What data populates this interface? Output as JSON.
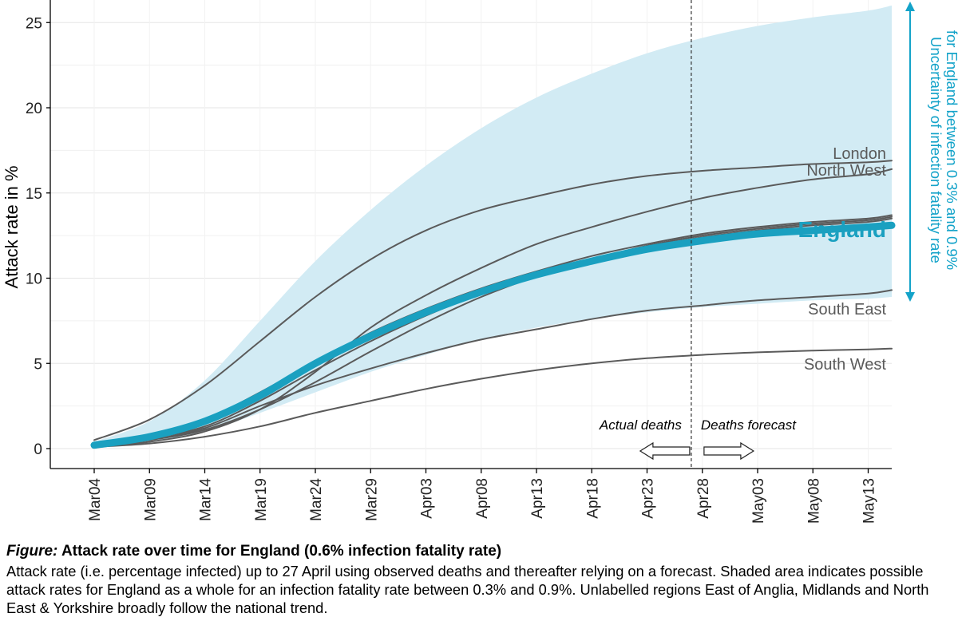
{
  "chart_data": {
    "type": "line",
    "ylabel": "Attack rate in %",
    "xlabel": "",
    "ylim": [
      0,
      26
    ],
    "yticks": [
      0,
      5,
      10,
      15,
      20,
      25
    ],
    "x_start": "Mar04",
    "x_end": "May18",
    "xticks": [
      "Mar04",
      "Mar09",
      "Mar14",
      "Mar19",
      "Mar24",
      "Mar29",
      "Apr03",
      "Apr08",
      "Apr13",
      "Apr18",
      "Apr23",
      "Apr28",
      "May03",
      "May08",
      "May13"
    ],
    "grid": "horizontal",
    "divider": {
      "x": "Apr27",
      "left_label": "Actual deaths",
      "right_label": "Deaths forecast"
    },
    "band": {
      "label": "Uncertainty of infection fatality rate for England between 0.3% and 0.9%",
      "x": [
        "Mar04",
        "Mar09",
        "Mar14",
        "Mar19",
        "Mar24",
        "Mar29",
        "Apr03",
        "Apr08",
        "Apr13",
        "Apr18",
        "Apr23",
        "Apr28",
        "May03",
        "May08",
        "May13",
        "May18"
      ],
      "upper": [
        0.4,
        1.6,
        4.0,
        7.5,
        11.0,
        14.0,
        16.6,
        18.8,
        20.6,
        22.0,
        23.2,
        24.1,
        24.8,
        25.3,
        25.7,
        26.0
      ],
      "lower": [
        0.1,
        0.4,
        1.0,
        2.1,
        3.3,
        4.5,
        5.5,
        6.4,
        7.1,
        7.6,
        8.0,
        8.3,
        8.5,
        8.7,
        8.8,
        8.9
      ]
    },
    "series": [
      {
        "name": "London",
        "x": [
          "Mar04",
          "Mar09",
          "Mar14",
          "Mar19",
          "Mar24",
          "Mar29",
          "Apr03",
          "Apr08",
          "Apr13",
          "Apr18",
          "Apr23",
          "Apr28",
          "May03",
          "May08",
          "May13",
          "May18"
        ],
        "values": [
          0.5,
          1.7,
          3.7,
          6.3,
          8.9,
          11.1,
          12.8,
          14.0,
          14.8,
          15.5,
          16.0,
          16.3,
          16.5,
          16.7,
          16.8,
          16.9
        ]
      },
      {
        "name": "North West",
        "x": [
          "Mar04",
          "Mar09",
          "Mar14",
          "Mar19",
          "Mar24",
          "Mar29",
          "Apr03",
          "Apr08",
          "Apr13",
          "Apr18",
          "Apr23",
          "Apr28",
          "May03",
          "May08",
          "May13",
          "May18"
        ],
        "values": [
          0.1,
          0.4,
          1.0,
          2.3,
          4.5,
          7.1,
          9.0,
          10.6,
          12.0,
          13.0,
          13.9,
          14.7,
          15.3,
          15.8,
          16.1,
          16.4
        ]
      },
      {
        "name": "England",
        "x": [
          "Mar04",
          "Mar09",
          "Mar14",
          "Mar19",
          "Mar24",
          "Mar29",
          "Apr03",
          "Apr08",
          "Apr13",
          "Apr18",
          "Apr23",
          "Apr28",
          "May03",
          "May08",
          "May13",
          "May18"
        ],
        "values": [
          0.2,
          0.7,
          1.6,
          3.1,
          5.0,
          6.6,
          8.0,
          9.2,
          10.2,
          11.0,
          11.7,
          12.2,
          12.6,
          12.8,
          13.0,
          13.1
        ]
      },
      {
        "name": "",
        "x": [
          "Mar04",
          "Mar09",
          "Mar14",
          "Mar19",
          "Mar24",
          "Mar29",
          "Apr03",
          "Apr08",
          "Apr13",
          "Apr18",
          "Apr23",
          "Apr28",
          "May03",
          "May08",
          "May13",
          "May18"
        ],
        "values": [
          0.3,
          0.8,
          1.7,
          3.3,
          5.1,
          6.8,
          8.2,
          9.4,
          10.4,
          11.3,
          12.0,
          12.6,
          13.0,
          13.3,
          13.5,
          13.7
        ]
      },
      {
        "name": "",
        "x": [
          "Mar04",
          "Mar09",
          "Mar14",
          "Mar19",
          "Mar24",
          "Mar29",
          "Apr03",
          "Apr08",
          "Apr13",
          "Apr18",
          "Apr23",
          "Apr28",
          "May03",
          "May08",
          "May13",
          "May18"
        ],
        "values": [
          0.2,
          0.6,
          1.3,
          2.8,
          4.6,
          6.3,
          7.8,
          9.1,
          10.2,
          11.1,
          11.9,
          12.5,
          12.9,
          13.2,
          13.4,
          13.6
        ]
      },
      {
        "name": "",
        "x": [
          "Mar04",
          "Mar09",
          "Mar14",
          "Mar19",
          "Mar24",
          "Mar29",
          "Apr03",
          "Apr08",
          "Apr13",
          "Apr18",
          "Apr23",
          "Apr28",
          "May03",
          "May08",
          "May13",
          "May18"
        ],
        "values": [
          0.1,
          0.5,
          1.1,
          2.3,
          3.9,
          5.7,
          7.4,
          8.9,
          10.1,
          11.0,
          11.8,
          12.4,
          12.8,
          13.1,
          13.3,
          13.5
        ]
      },
      {
        "name": "South East",
        "x": [
          "Mar04",
          "Mar09",
          "Mar14",
          "Mar19",
          "Mar24",
          "Mar29",
          "Apr03",
          "Apr08",
          "Apr13",
          "Apr18",
          "Apr23",
          "Apr28",
          "May03",
          "May08",
          "May13",
          "May18"
        ],
        "values": [
          0.1,
          0.5,
          1.2,
          2.5,
          3.7,
          4.7,
          5.6,
          6.4,
          7.0,
          7.6,
          8.1,
          8.4,
          8.7,
          8.9,
          9.1,
          9.3
        ]
      },
      {
        "name": "South West",
        "x": [
          "Mar04",
          "Mar09",
          "Mar14",
          "Mar19",
          "Mar24",
          "Mar29",
          "Apr03",
          "Apr08",
          "Apr13",
          "Apr18",
          "Apr23",
          "Apr28",
          "May03",
          "May08",
          "May13",
          "May18"
        ],
        "values": [
          0.1,
          0.3,
          0.7,
          1.3,
          2.1,
          2.8,
          3.5,
          4.1,
          4.6,
          5.0,
          5.3,
          5.5,
          5.65,
          5.75,
          5.82,
          5.87
        ]
      }
    ],
    "labels": [
      "London",
      "North West",
      "England",
      "South East",
      "South West"
    ],
    "colors": {
      "band": "#d2ebf4",
      "england": "#1aa0c0",
      "regions": "#5a5a5a",
      "uncertainty_text": "#14a3c9",
      "grid": "#e5e5e5",
      "divider": "#333333"
    }
  },
  "caption": {
    "figure_word": "Figure:",
    "title": " Attack rate over time for England (0.6% infection fatality rate)",
    "body": "Attack rate (i.e. percentage infected) up to 27 April using observed deaths and thereafter relying on a forecast. Shaded area indicates possible attack rates for England as a whole for an infection fatality rate between 0.3% and 0.9%. Unlabelled regions East of Anglia, Midlands and North East & Yorkshire broadly follow the national trend."
  }
}
